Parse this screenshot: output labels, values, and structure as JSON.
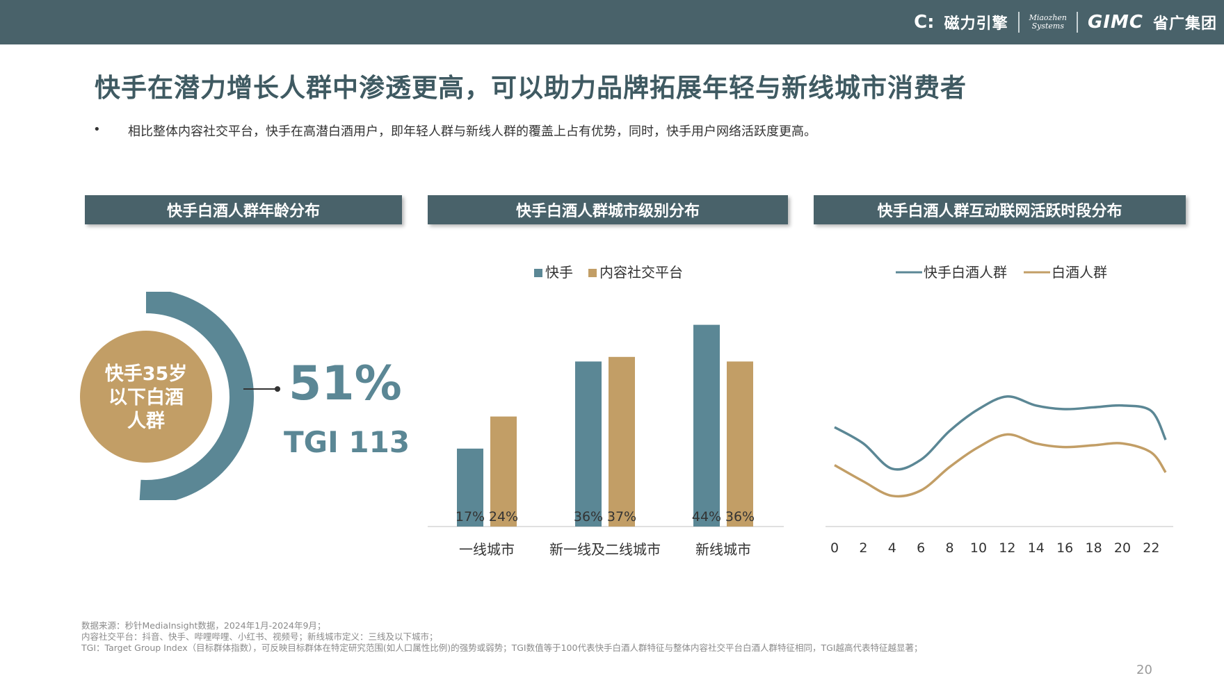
{
  "header": {
    "logo_brand": "磁力引擎",
    "logo_miaozhen": [
      "Miaozhen",
      "Systems"
    ],
    "logo_gimc": "GIMC",
    "logo_gimc_cn": "省广集团"
  },
  "slide": {
    "title": "快手在潜力增长人群中渗透更高，可以助力品牌拓展年轻与新线城市消费者",
    "bullet": "•",
    "description": "相比整体内容社交平台，快手在高潜白酒用户，即年轻人群与新线人群的覆盖上占有优势，同时，快手用户网络活跃度更高。",
    "page_number": "20"
  },
  "colors": {
    "teal": "#5b8795",
    "gold": "#c29e66",
    "header_bg": "#49626a",
    "title": "#3f5a62"
  },
  "chart_data": [
    {
      "type": "pie",
      "title": "快手白酒人群年龄分布",
      "center_label": [
        "快手35岁",
        "以下白酒",
        "人群"
      ],
      "value": 51,
      "value_label": "51%",
      "tgi_label": "TGI 113"
    },
    {
      "type": "bar",
      "title": "快手白酒人群城市级别分布",
      "categories": [
        "一线城市",
        "新一线及二线城市",
        "新线城市"
      ],
      "series": [
        {
          "name": "快手",
          "values": [
            17,
            36,
            44
          ],
          "labels": [
            "17%",
            "36%",
            "44%"
          ]
        },
        {
          "name": "内容社交平台",
          "values": [
            24,
            37,
            36
          ],
          "labels": [
            "24%",
            "37%",
            "36%"
          ]
        }
      ],
      "ylim": [
        0,
        50
      ],
      "legend": "top"
    },
    {
      "type": "line",
      "title": "快手白酒人群互动联网活跃时段分布",
      "x": [
        0,
        2,
        4,
        6,
        8,
        10,
        12,
        14,
        16,
        18,
        20,
        22,
        23
      ],
      "x_ticks": [
        "0",
        "2",
        "4",
        "6",
        "8",
        "10",
        "12",
        "14",
        "16",
        "18",
        "20",
        "22"
      ],
      "series": [
        {
          "name": "快手白酒人群",
          "values": [
            55,
            46,
            32,
            37,
            53,
            65,
            72,
            67,
            65,
            66,
            67,
            64,
            48
          ]
        },
        {
          "name": "白酒人群",
          "values": [
            34,
            25,
            17,
            20,
            33,
            44,
            51,
            46,
            44,
            45,
            46,
            41,
            30
          ]
        }
      ],
      "ylim": [
        0,
        100
      ],
      "legend": "top"
    }
  ],
  "footnotes": [
    "数据来源：秒针MediaInsight数据，2024年1月-2024年9月；",
    "内容社交平台：抖音、快手、哔哩哔哩、小红书、视频号；新线城市定义：三线及以下城市；",
    "TGI：Target Group Index（目标群体指数），可反映目标群体在特定研究范围(如人口属性比例)的强势或弱势；TGI数值等于100代表快手白酒人群特征与整体内容社交平台白酒人群特征相同，TGI越高代表特征越显著；"
  ]
}
